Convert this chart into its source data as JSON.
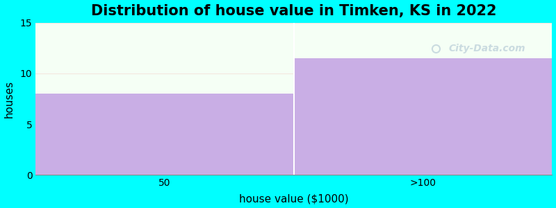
{
  "title": "Distribution of house value in Timken, KS in 2022",
  "xlabel": "house value ($1000)",
  "ylabel": "houses",
  "categories": [
    "50",
    ">100"
  ],
  "values": [
    8,
    11.5
  ],
  "bar_color": "#c9aee5",
  "ylim": [
    0,
    15
  ],
  "xlim": [
    0,
    2
  ],
  "yticks": [
    0,
    5,
    10,
    15
  ],
  "xtick_positions": [
    0.5,
    1.5
  ],
  "background_color": "#00ffff",
  "plot_bg_color_top": "#f5fff5",
  "plot_bg_color_bottom": "#f5fff5",
  "title_fontsize": 15,
  "axis_label_fontsize": 11,
  "watermark_text": "City-Data.com",
  "watermark_color": "#a8bfcf",
  "watermark_alpha": 0.55,
  "tick_fontsize": 10
}
